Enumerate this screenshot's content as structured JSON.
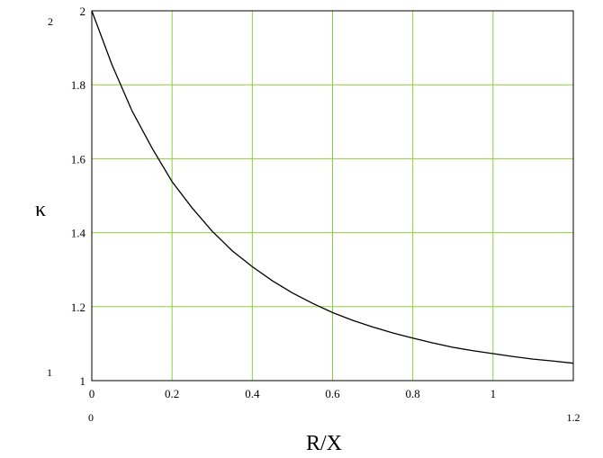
{
  "chart_data": {
    "type": "line",
    "title": "",
    "xlabel": "R/X",
    "ylabel": "κ",
    "xlim": [
      0,
      1.2
    ],
    "ylim": [
      1,
      2
    ],
    "x_ticks": [
      "0",
      "0.2",
      "0.4",
      "0.6",
      "0.8",
      "1"
    ],
    "y_ticks": [
      "1",
      "1.2",
      "1.4",
      "1.6",
      "1.8",
      "2"
    ],
    "range_labels": {
      "y_max": "2",
      "y_min": "1",
      "x_min": "0",
      "x_max": "1.2"
    },
    "grid": true,
    "grid_color": "#8ccf3a",
    "line_color": "#000000",
    "series": [
      {
        "x": [
          0,
          0.05,
          0.1,
          0.15,
          0.2,
          0.25,
          0.3,
          0.35,
          0.4,
          0.45,
          0.5,
          0.55,
          0.6,
          0.65,
          0.7,
          0.75,
          0.8,
          0.85,
          0.9,
          0.95,
          1.0,
          1.05,
          1.1,
          1.15,
          1.2
        ],
        "values": [
          2.0,
          1.855,
          1.73,
          1.629,
          1.538,
          1.467,
          1.404,
          1.351,
          1.308,
          1.27,
          1.237,
          1.209,
          1.184,
          1.163,
          1.145,
          1.129,
          1.115,
          1.102,
          1.09,
          1.081,
          1.073,
          1.065,
          1.058,
          1.053,
          1.047
        ]
      }
    ]
  }
}
